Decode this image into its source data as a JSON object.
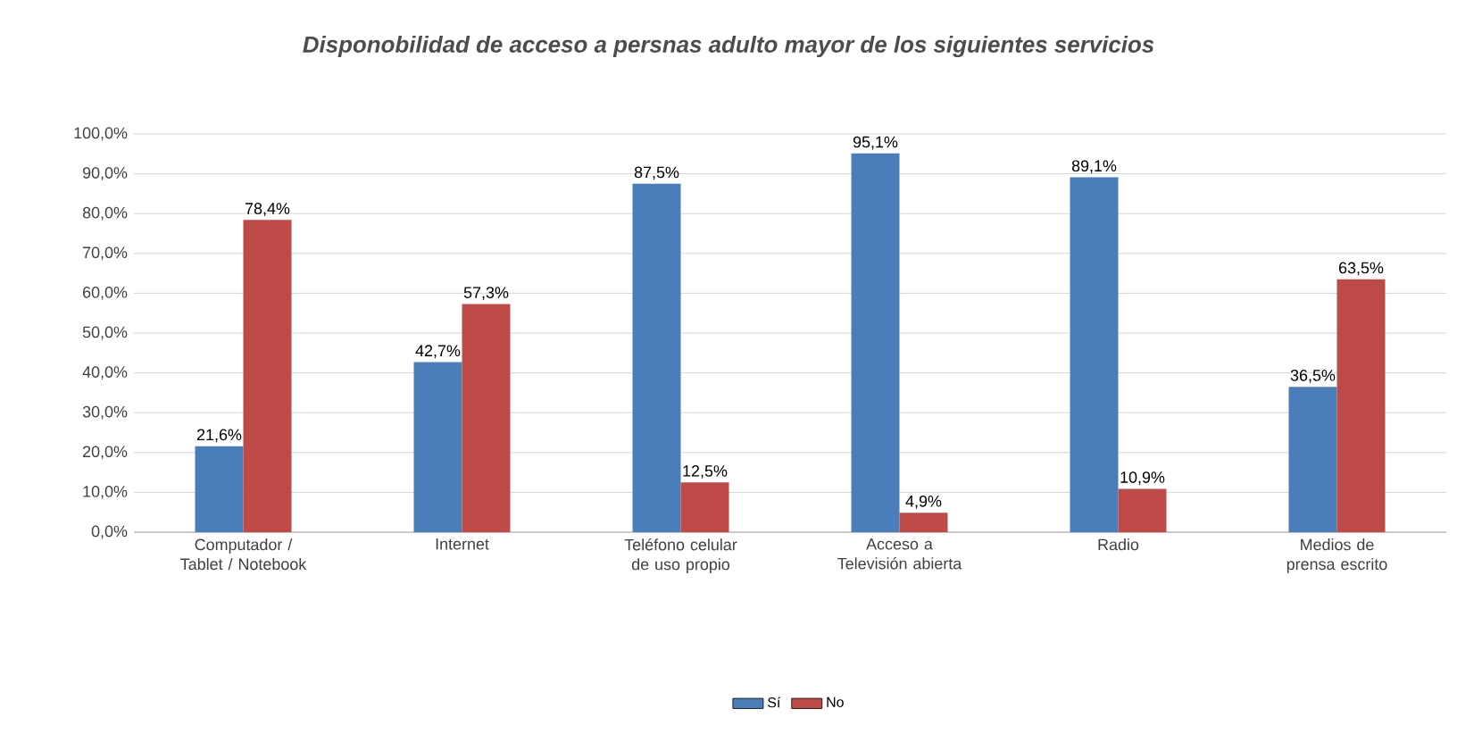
{
  "chart_data": {
    "type": "bar",
    "title": "Disponobilidad de acceso a persnas adulto mayor de los siguientes servicios",
    "categories": [
      "Computador / Tablet / Notebook",
      "Internet",
      "Teléfono celular de uso propio",
      "Acceso a Televisión abierta",
      "Radio",
      "Medios de prensa escrito"
    ],
    "series": [
      {
        "name": "Sí",
        "color": "#4a7ebb",
        "values": [
          21.6,
          42.7,
          87.5,
          95.1,
          89.1,
          36.5
        ],
        "value_labels": [
          "21,6%",
          "42,7%",
          "87,5%",
          "95,1%",
          "89,1%",
          "36,5%"
        ]
      },
      {
        "name": "No",
        "color": "#be4b48",
        "values": [
          78.4,
          57.3,
          12.5,
          4.9,
          10.9,
          63.5
        ],
        "value_labels": [
          "78,4%",
          "57,3%",
          "12,5%",
          "4,9%",
          "10,9%",
          "63,5%"
        ]
      }
    ],
    "ylim": [
      0,
      100
    ],
    "yticks": [
      {
        "value": 0,
        "label": "0,0%"
      },
      {
        "value": 10,
        "label": "10,0%"
      },
      {
        "value": 20,
        "label": "20,0%"
      },
      {
        "value": 30,
        "label": "30,0%"
      },
      {
        "value": 40,
        "label": "40,0%"
      },
      {
        "value": 50,
        "label": "50,0%"
      },
      {
        "value": 60,
        "label": "60,0%"
      },
      {
        "value": 70,
        "label": "70,0%"
      },
      {
        "value": 80,
        "label": "80,0%"
      },
      {
        "value": 90,
        "label": "90,0%"
      },
      {
        "value": 100,
        "label": "100,0%"
      }
    ],
    "grid": "y",
    "legend": "bottom"
  }
}
